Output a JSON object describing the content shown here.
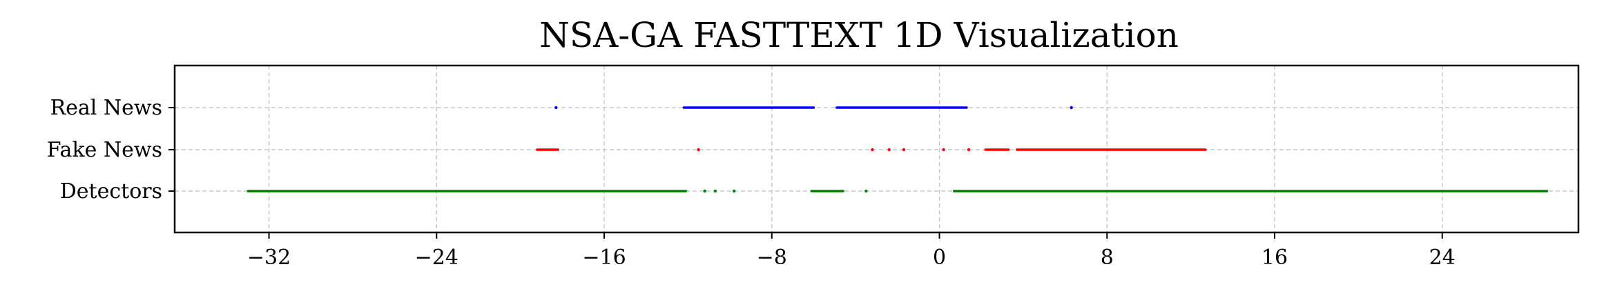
{
  "chart_data": {
    "type": "scatter",
    "title": "NSA-GA FASTTEXT 1D Visualization",
    "xlabel": "",
    "ylabel": "",
    "xlim": [
      -36.5,
      30.5
    ],
    "x_ticks": [
      -32,
      -24,
      -16,
      -8,
      0,
      8,
      16,
      24
    ],
    "x_tick_labels": [
      "−32",
      "−24",
      "−16",
      "−8",
      "0",
      "8",
      "16",
      "24"
    ],
    "categories": [
      "Real News",
      "Fake News",
      "Detectors"
    ],
    "grid": true,
    "series": [
      {
        "name": "Real News",
        "color": "#0000ff",
        "points": [
          -18.3
        ],
        "ranges": [
          [
            -12.2,
            -6.0
          ],
          [
            -4.9,
            1.3
          ]
        ],
        "extra_points": [
          6.3
        ]
      },
      {
        "name": "Fake News",
        "color": "#ff0000",
        "points": [
          -11.5,
          -3.2,
          -2.4,
          -1.7,
          0.2,
          1.4
        ],
        "ranges": [
          [
            -19.2,
            -18.2
          ],
          [
            2.2,
            3.3
          ],
          [
            3.7,
            12.7
          ]
        ],
        "extra_points": []
      },
      {
        "name": "Detectors",
        "color": "#008000",
        "points": [
          -11.2,
          -10.7,
          -9.8,
          -3.5
        ],
        "ranges": [
          [
            -33.0,
            -12.1
          ],
          [
            -6.1,
            -4.6
          ],
          [
            0.7,
            29.0
          ]
        ],
        "extra_points": []
      }
    ]
  }
}
